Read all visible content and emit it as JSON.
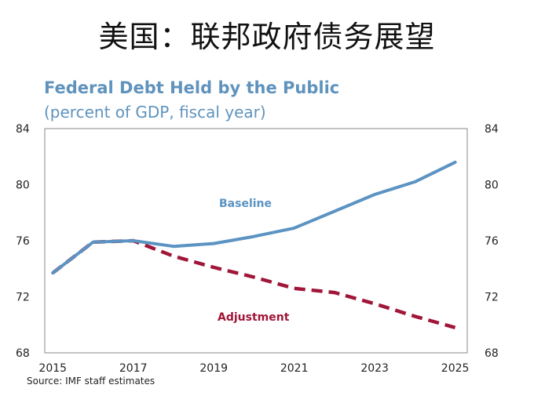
{
  "slide": {
    "title": "美国：联邦政府债务展望"
  },
  "source": "Source: IMF staff estimates",
  "chart_data": {
    "type": "line",
    "title": "Federal Debt Held by the Public",
    "subtitle": "(percent of GDP, fiscal year)",
    "xlabel": "",
    "ylabel": "",
    "x": [
      2015,
      2016,
      2017,
      2018,
      2019,
      2020,
      2021,
      2022,
      2023,
      2024,
      2025
    ],
    "x_tick_labels": [
      "2015",
      "2017",
      "2019",
      "2021",
      "2023",
      "2025"
    ],
    "x_tick_values": [
      2015,
      2017,
      2019,
      2021,
      2023,
      2025
    ],
    "y_tick_labels": [
      "84",
      "80",
      "76",
      "72",
      "68"
    ],
    "y_tick_values": [
      84,
      80,
      76,
      72,
      68
    ],
    "xlim": [
      2014.8,
      2025.3
    ],
    "ylim": [
      68,
      84
    ],
    "grid": false,
    "dual_y_axis": true,
    "series": [
      {
        "name": "Baseline",
        "color": "#5b93c2",
        "style": "solid",
        "values": [
          73.7,
          75.9,
          76.0,
          75.6,
          75.8,
          76.3,
          76.9,
          78.1,
          79.3,
          80.2,
          81.6
        ]
      },
      {
        "name": "Adjustment",
        "color": "#a01538",
        "style": "dashed",
        "values": [
          73.7,
          75.9,
          76.0,
          74.9,
          74.1,
          73.4,
          72.6,
          72.3,
          71.5,
          70.6,
          69.8
        ]
      }
    ]
  }
}
